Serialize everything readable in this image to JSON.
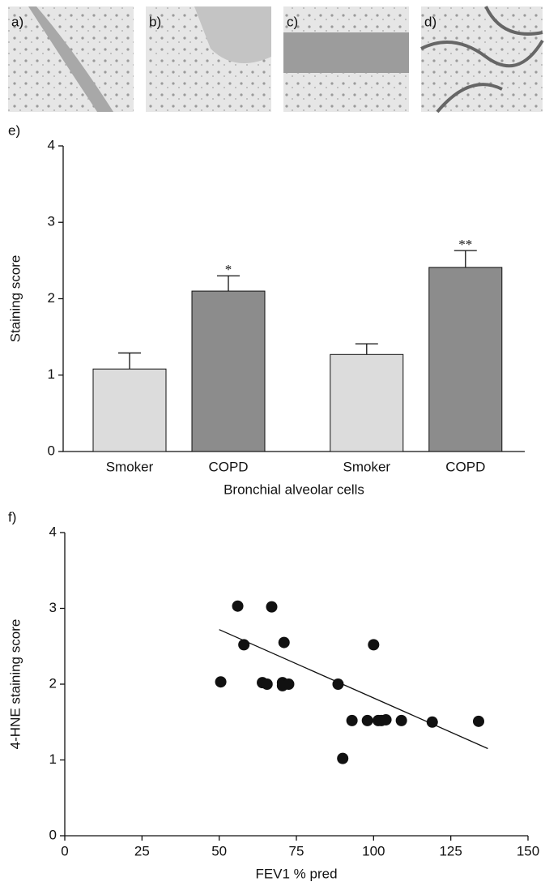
{
  "image_panels": {
    "labels": [
      "a)",
      "b)",
      "c)",
      "d)"
    ]
  },
  "chart_data": [
    {
      "type": "bar",
      "panel_label": "e)",
      "y_label": "Staining score",
      "x_label": "Bronchial alveolar cells",
      "categories": [
        "Smoker",
        "COPD",
        "Smoker",
        "COPD"
      ],
      "values": [
        1.08,
        2.1,
        1.27,
        2.41
      ],
      "errors": [
        0.21,
        0.2,
        0.14,
        0.22
      ],
      "annotations": [
        null,
        "*",
        null,
        "**"
      ],
      "colors": [
        "#dcdcdc",
        "#8c8c8c",
        "#dcdcdc",
        "#8c8c8c"
      ],
      "ylim": [
        0,
        4
      ],
      "yticks": [
        0,
        1,
        2,
        3,
        4
      ]
    },
    {
      "type": "scatter",
      "panel_label": "f)",
      "y_label": "4-HNE staining score",
      "x_label": "FEV1 % pred",
      "x": [
        50.5,
        56,
        58,
        64,
        65.5,
        67,
        70.5,
        70.5,
        71,
        72.5,
        88.5,
        90,
        93,
        98,
        100,
        101.5,
        102.5,
        104,
        109,
        119,
        134
      ],
      "y": [
        2.03,
        3.03,
        2.52,
        2.02,
        2.0,
        3.02,
        2.02,
        1.98,
        2.55,
        2.0,
        2.0,
        1.02,
        1.52,
        1.52,
        2.52,
        1.52,
        1.52,
        1.53,
        1.52,
        1.5,
        1.51
      ],
      "color": "#111111",
      "fit_line": {
        "x": [
          50,
          137
        ],
        "y": [
          2.72,
          1.15
        ]
      },
      "xlim": [
        0,
        150
      ],
      "xticks": [
        0,
        25,
        50,
        75,
        100,
        125,
        150
      ],
      "ylim": [
        0,
        4
      ],
      "yticks": [
        0,
        1,
        2,
        3,
        4
      ]
    }
  ]
}
